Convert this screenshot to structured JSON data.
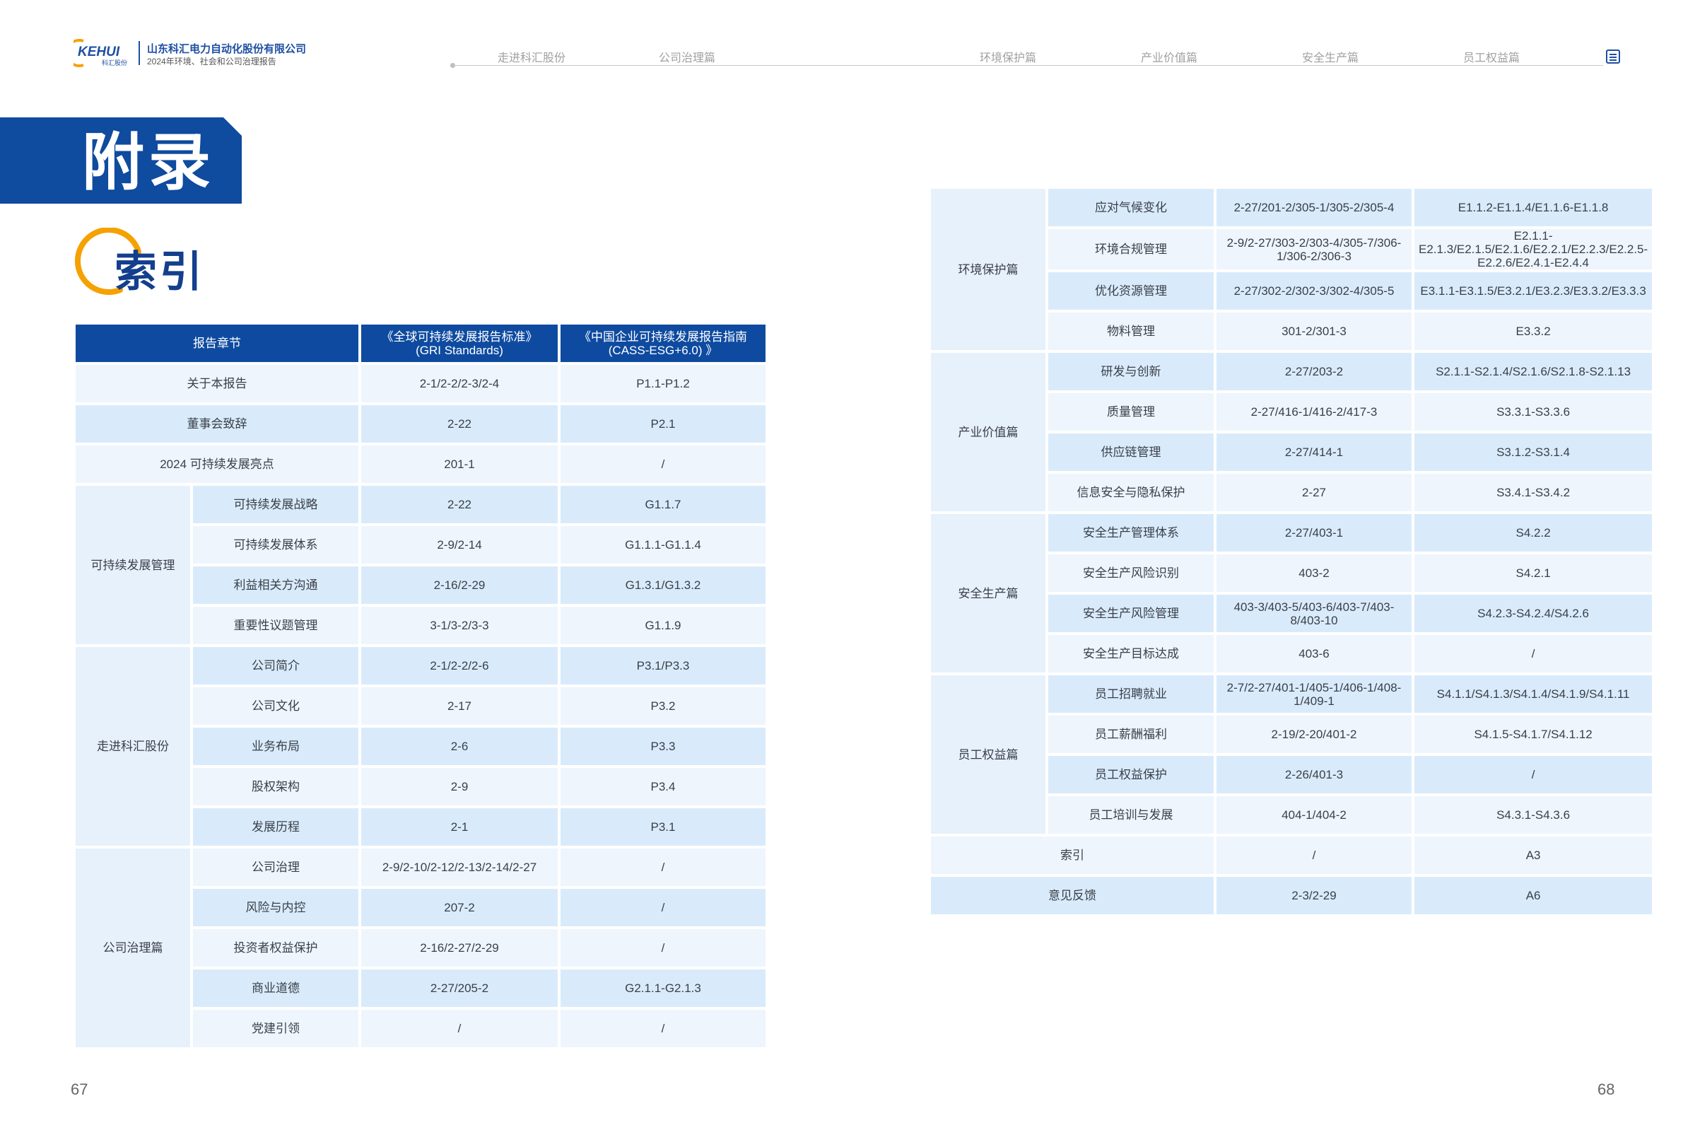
{
  "header": {
    "logo_text": "KEHUI",
    "logo_sub": "科汇股份",
    "company": "山东科汇电力自动化股份有限公司",
    "report": "2024年环境、社会和公司治理报告",
    "nav": [
      "走进科汇股份",
      "公司治理篇",
      "环境保护篇",
      "产业价值篇",
      "安全生产篇",
      "员工权益篇"
    ],
    "menu_icon": "menu-icon"
  },
  "title": "附录",
  "subtitle": "索引",
  "colors": {
    "brand_blue": "#0f4b9e",
    "accent_orange": "#f5a100",
    "light_cell": "#eef5fd",
    "dark_cell": "#d9ebfb"
  },
  "left_table": {
    "headers": [
      "报告章节",
      "《全球可持续发展报告标准》\n(GRI Standards)",
      "《中国企业可持续发展报告指南\n(CASS-ESG+6.0) 》"
    ],
    "single_rows": [
      {
        "chapter": "关于本报告",
        "gri": "2-1/2-2/2-3/2-4",
        "cass": "P1.1-P1.2"
      },
      {
        "chapter": "董事会致辞",
        "gri": "2-22",
        "cass": "P2.1"
      },
      {
        "chapter": "2024 可持续发展亮点",
        "gri": "201-1",
        "cass": "/"
      }
    ],
    "groups": [
      {
        "name": "可持续发展管理",
        "rows": [
          {
            "item": "可持续发展战略",
            "gri": "2-22",
            "cass": "G1.1.7"
          },
          {
            "item": "可持续发展体系",
            "gri": "2-9/2-14",
            "cass": "G1.1.1-G1.1.4"
          },
          {
            "item": "利益相关方沟通",
            "gri": "2-16/2-29",
            "cass": "G1.3.1/G1.3.2"
          },
          {
            "item": "重要性议题管理",
            "gri": "3-1/3-2/3-3",
            "cass": "G1.1.9"
          }
        ]
      },
      {
        "name": "走进科汇股份",
        "rows": [
          {
            "item": "公司简介",
            "gri": "2-1/2-2/2-6",
            "cass": "P3.1/P3.3"
          },
          {
            "item": "公司文化",
            "gri": "2-17",
            "cass": "P3.2"
          },
          {
            "item": "业务布局",
            "gri": "2-6",
            "cass": "P3.3"
          },
          {
            "item": "股权架构",
            "gri": "2-9",
            "cass": "P3.4"
          },
          {
            "item": "发展历程",
            "gri": "2-1",
            "cass": "P3.1"
          }
        ]
      },
      {
        "name": "公司治理篇",
        "rows": [
          {
            "item": "公司治理",
            "gri": "2-9/2-10/2-12/2-13/2-14/2-27",
            "cass": "/"
          },
          {
            "item": "风险与内控",
            "gri": "207-2",
            "cass": "/"
          },
          {
            "item": "投资者权益保护",
            "gri": "2-16/2-27/2-29",
            "cass": "/"
          },
          {
            "item": "商业道德",
            "gri": "2-27/205-2",
            "cass": "G2.1.1-G2.1.3"
          },
          {
            "item": "党建引领",
            "gri": "/",
            "cass": "/"
          }
        ]
      }
    ]
  },
  "right_table": {
    "groups": [
      {
        "name": "环境保护篇",
        "rows": [
          {
            "item": "应对气候变化",
            "gri": "2-27/201-2/305-1/305-2/305-4",
            "cass": "E1.1.2-E1.1.4/E1.1.6-E1.1.8"
          },
          {
            "item": "环境合规管理",
            "gri": "2-9/2-27/303-2/303-4/305-7/306-1/306-2/306-3",
            "cass": "E2.1.1-E2.1.3/E2.1.5/E2.1.6/E2.2.1/E2.2.3/E2.2.5-E2.2.6/E2.4.1-E2.4.4"
          },
          {
            "item": "优化资源管理",
            "gri": "2-27/302-2/302-3/302-4/305-5",
            "cass": "E3.1.1-E3.1.5/E3.2.1/E3.2.3/E3.3.2/E3.3.3"
          },
          {
            "item": "物料管理",
            "gri": "301-2/301-3",
            "cass": "E3.3.2"
          }
        ]
      },
      {
        "name": "产业价值篇",
        "rows": [
          {
            "item": "研发与创新",
            "gri": "2-27/203-2",
            "cass": "S2.1.1-S2.1.4/S2.1.6/S2.1.8-S2.1.13"
          },
          {
            "item": "质量管理",
            "gri": "2-27/416-1/416-2/417-3",
            "cass": "S3.3.1-S3.3.6"
          },
          {
            "item": "供应链管理",
            "gri": "2-27/414-1",
            "cass": "S3.1.2-S3.1.4"
          },
          {
            "item": "信息安全与隐私保护",
            "gri": "2-27",
            "cass": "S3.4.1-S3.4.2"
          }
        ]
      },
      {
        "name": "安全生产篇",
        "rows": [
          {
            "item": "安全生产管理体系",
            "gri": "2-27/403-1",
            "cass": "S4.2.2"
          },
          {
            "item": "安全生产风险识别",
            "gri": "403-2",
            "cass": "S4.2.1"
          },
          {
            "item": "安全生产风险管理",
            "gri": "403-3/403-5/403-6/403-7/403-8/403-10",
            "cass": "S4.2.3-S4.2.4/S4.2.6"
          },
          {
            "item": "安全生产目标达成",
            "gri": "403-6",
            "cass": "/"
          }
        ]
      },
      {
        "name": "员工权益篇",
        "rows": [
          {
            "item": "员工招聘就业",
            "gri": "2-7/2-27/401-1/405-1/406-1/408-1/409-1",
            "cass": "S4.1.1/S4.1.3/S4.1.4/S4.1.9/S4.1.11"
          },
          {
            "item": "员工薪酬福利",
            "gri": "2-19/2-20/401-2",
            "cass": "S4.1.5-S4.1.7/S4.1.12"
          },
          {
            "item": "员工权益保护",
            "gri": "2-26/401-3",
            "cass": "/"
          },
          {
            "item": "员工培训与发展",
            "gri": "404-1/404-2",
            "cass": "S4.3.1-S4.3.6"
          }
        ]
      }
    ],
    "single_rows": [
      {
        "chapter": "索引",
        "gri": "/",
        "cass": "A3"
      },
      {
        "chapter": "意见反馈",
        "gri": "2-3/2-29",
        "cass": "A6"
      }
    ]
  },
  "page_numbers": {
    "left": "67",
    "right": "68"
  }
}
